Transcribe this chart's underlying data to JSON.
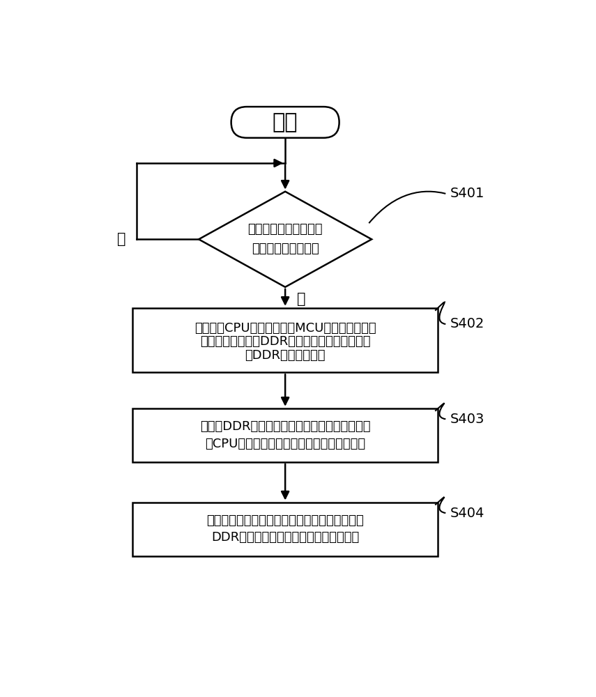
{
  "bg_color": "#ffffff",
  "line_color": "#000000",
  "text_color": "#000000",
  "font_size_title": 20,
  "font_size_label": 13,
  "font_size_step": 14,
  "title": "开始",
  "diamond_text_line1": "检测看门狗计时器的计",
  "diamond_text_line2": "数值是否超出预设值",
  "box1_line1": "利用系统CPU中的微处理器MCU控制双倍速率同",
  "box1_line2": "步动态随机存储器DDR采用自刷新的方式保存所",
  "box1_line3": "述DDR中的内存数据",
  "box2_line1": "当所述DDR完成其内部数据保存后，控制所述系",
  "box2_line2": "统CPU中的应用处理器进入系统程序运行状态",
  "box3_line1": "在所述应用处理器进入系统程序运行后，将所述",
  "box3_line2": "DDR中的内存数据存储到预设存储介质中",
  "step_labels": [
    "S401",
    "S402",
    "S403",
    "S404"
  ],
  "no_label": "否",
  "yes_label": "是"
}
